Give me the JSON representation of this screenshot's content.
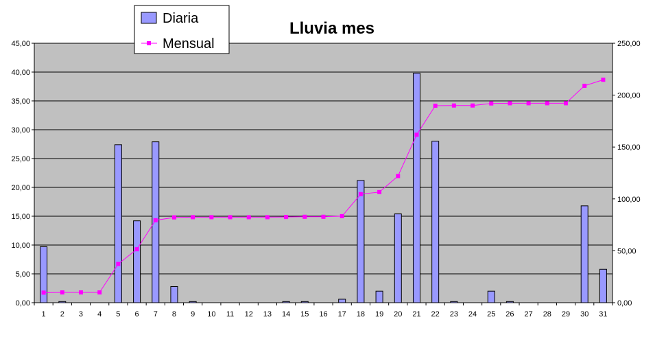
{
  "chart_data": {
    "type": "bar",
    "title": "Lluvia mes",
    "categories": [
      "1",
      "2",
      "3",
      "4",
      "5",
      "6",
      "7",
      "8",
      "9",
      "10",
      "11",
      "12",
      "13",
      "14",
      "15",
      "16",
      "17",
      "18",
      "19",
      "20",
      "21",
      "22",
      "23",
      "24",
      "25",
      "26",
      "27",
      "28",
      "29",
      "30",
      "31"
    ],
    "series": [
      {
        "name": "Diaria",
        "kind": "bar",
        "axis": "left",
        "color": "#9999ff",
        "values": [
          9.7,
          0.2,
          0,
          0,
          27.4,
          14.2,
          27.9,
          2.8,
          0.2,
          0,
          0,
          0,
          0,
          0.2,
          0.2,
          0,
          0.6,
          21.2,
          2.0,
          15.4,
          39.8,
          28.0,
          0.2,
          0,
          2.0,
          0.2,
          0,
          0,
          0,
          16.8,
          5.8
        ]
      },
      {
        "name": "Mensual",
        "kind": "line",
        "axis": "right",
        "color": "#ff00ff",
        "values": [
          9.7,
          9.9,
          9.9,
          9.9,
          37.3,
          51.5,
          79.4,
          82.2,
          82.4,
          82.4,
          82.4,
          82.4,
          82.4,
          82.6,
          82.8,
          82.8,
          83.4,
          104.6,
          106.6,
          122.0,
          161.8,
          189.8,
          190.0,
          190.0,
          192.0,
          192.2,
          192.2,
          192.2,
          192.2,
          209.0,
          214.8
        ]
      }
    ],
    "y_left": {
      "min": 0,
      "max": 45,
      "step": 5,
      "tick_labels": [
        "0,00",
        "5,00",
        "10,00",
        "15,00",
        "20,00",
        "25,00",
        "30,00",
        "35,00",
        "40,00",
        "45,00"
      ]
    },
    "y_right": {
      "min": 0,
      "max": 250,
      "step": 50,
      "tick_labels": [
        "0,00",
        "50,00",
        "100,00",
        "150,00",
        "200,00",
        "250,00"
      ]
    },
    "grid": true,
    "legend": {
      "position": "top-left",
      "entries": [
        "Diaria",
        "Mensual"
      ]
    },
    "colors": {
      "plot_background": "#c0c0c0",
      "bar_fill": "#9999ff",
      "line": "#ff00ff"
    }
  }
}
